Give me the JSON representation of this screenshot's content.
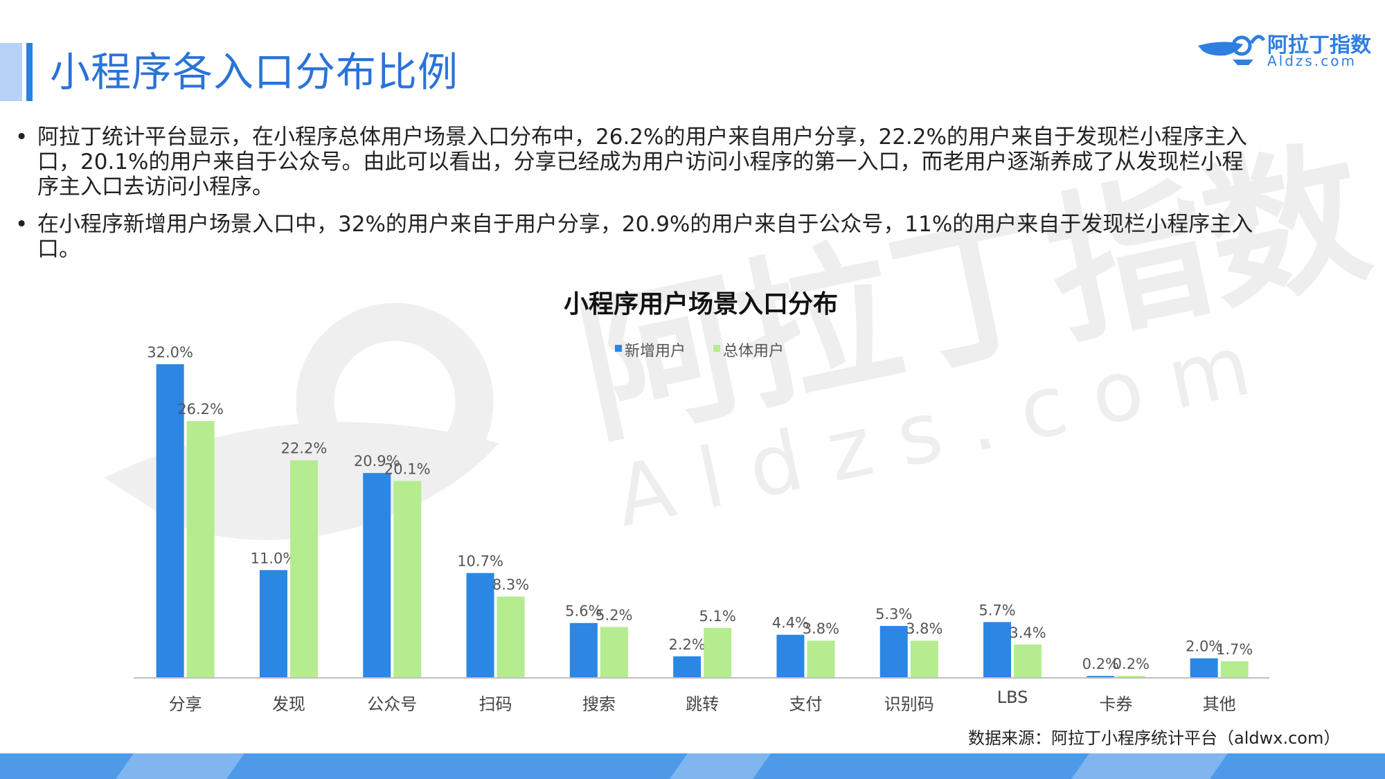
{
  "header": {
    "title": "小程序各入口分布比例",
    "logo_cn": "阿拉丁指数",
    "logo_en": "Aldzs.com"
  },
  "bullets": [
    "阿拉丁统计平台显示，在小程序总体用户场景入口分布中，26.2%的用户来自用户分享，22.2%的用户来自于发现栏小程序主入口，20.1%的用户来自于公众号。由此可以看出，分享已经成为用户访问小程序的第一入口，而老用户逐渐养成了从发现栏小程序主入口去访问小程序。",
    "在小程序新增用户场景入口中，32%的用户来自于用户分享，20.9%的用户来自于公众号，11%的用户来自于发现栏小程序主入口。"
  ],
  "bullet_symbol": "•",
  "watermark": {
    "cn": "阿拉丁指数",
    "en": "Aldzs.com"
  },
  "chart_data": {
    "type": "bar",
    "title": "小程序用户场景入口分布",
    "categories": [
      "分享",
      "发现",
      "公众号",
      "扫码",
      "搜索",
      "跳转",
      "支付",
      "识别码",
      "LBS",
      "卡券",
      "其他"
    ],
    "series": [
      {
        "name": "新增用户",
        "values": [
          32.0,
          11.0,
          20.9,
          10.7,
          5.6,
          2.2,
          4.4,
          5.3,
          5.7,
          0.2,
          2.0
        ],
        "color": "#2b87e3"
      },
      {
        "name": "总体用户",
        "values": [
          26.2,
          22.2,
          20.1,
          8.3,
          5.2,
          5.1,
          3.8,
          3.8,
          3.4,
          0.2,
          1.7
        ],
        "color": "#b5ec8f"
      }
    ],
    "value_suffix": "%",
    "ylim": [
      0,
      35
    ],
    "grid": false,
    "legend": "top-center"
  },
  "source": "数据来源：阿拉丁小程序统计平台（aldwx.com）",
  "colors": {
    "accent": "#2f7fe0",
    "footer": "#4f9ae8"
  }
}
